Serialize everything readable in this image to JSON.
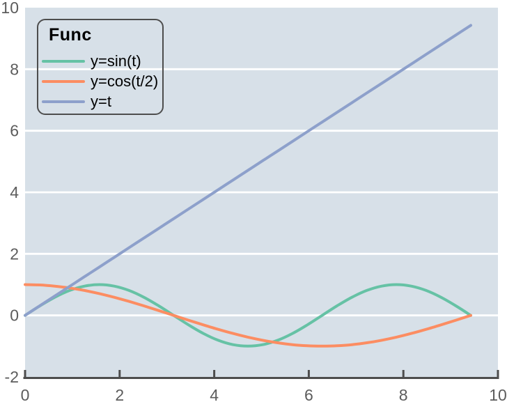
{
  "chart_data": {
    "type": "line",
    "title": "",
    "legend_title": "Func",
    "legend_position": "top-left",
    "xlim": [
      0,
      10
    ],
    "ylim": [
      -2,
      10
    ],
    "x_ticks": [
      0,
      2,
      4,
      6,
      8,
      10
    ],
    "y_ticks": [
      -2,
      0,
      2,
      4,
      6,
      8,
      10
    ],
    "grid_y": [
      0,
      2,
      4,
      6,
      8
    ],
    "grid": "horizontal-white-lines-only",
    "colors": {
      "plot_background": "#d7e0e8",
      "grid_line": "#ffffff",
      "axis_line": "#4d4d4d",
      "tick_label": "#5c5c5c",
      "legend_border": "#4d4d4d",
      "legend_text": "#000000"
    },
    "x": [
      0,
      0.314,
      0.628,
      0.942,
      1.257,
      1.571,
      1.885,
      2.199,
      2.513,
      2.827,
      3.142,
      3.456,
      3.77,
      4.084,
      4.398,
      4.712,
      5.027,
      5.341,
      5.655,
      5.969,
      6.283,
      6.597,
      6.912,
      7.226,
      7.54,
      7.854,
      8.168,
      8.482,
      8.796,
      9.111,
      9.425
    ],
    "series": [
      {
        "name": "y=sin(t)",
        "color": "#66c2a5",
        "values": [
          0,
          0.309,
          0.588,
          0.809,
          0.951,
          1,
          0.951,
          0.809,
          0.588,
          0.309,
          0,
          -0.309,
          -0.588,
          -0.809,
          -0.951,
          -1,
          -0.951,
          -0.809,
          -0.588,
          -0.309,
          0,
          0.309,
          0.588,
          0.809,
          0.951,
          1,
          0.951,
          0.809,
          0.588,
          0.309,
          0
        ]
      },
      {
        "name": "y=cos(t/2)",
        "color": "#fc8d62",
        "values": [
          1,
          0.988,
          0.951,
          0.891,
          0.809,
          0.707,
          0.588,
          0.454,
          0.309,
          0.156,
          0,
          -0.156,
          -0.309,
          -0.454,
          -0.588,
          -0.707,
          -0.809,
          -0.891,
          -0.951,
          -0.988,
          -1,
          -0.988,
          -0.951,
          -0.891,
          -0.809,
          -0.707,
          -0.588,
          -0.454,
          -0.309,
          -0.156,
          0
        ]
      },
      {
        "name": "y=t",
        "color": "#8da0cb",
        "values": [
          0,
          0.314,
          0.628,
          0.942,
          1.257,
          1.571,
          1.885,
          2.199,
          2.513,
          2.827,
          3.142,
          3.456,
          3.77,
          4.084,
          4.398,
          4.712,
          5.027,
          5.341,
          5.655,
          5.969,
          6.283,
          6.597,
          6.912,
          7.226,
          7.54,
          7.854,
          8.168,
          8.482,
          8.796,
          9.111,
          9.425
        ]
      }
    ]
  }
}
